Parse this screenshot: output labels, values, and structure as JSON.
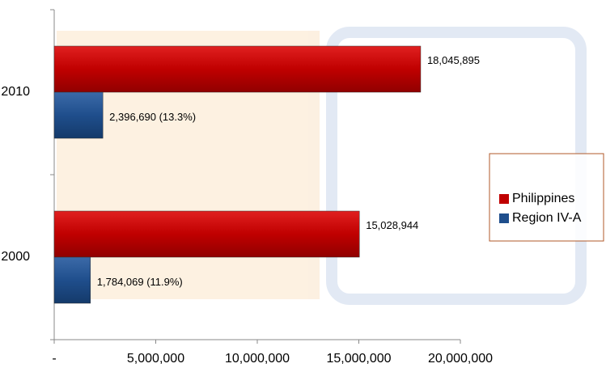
{
  "chart_data": {
    "type": "hbar",
    "categories": [
      "2010",
      "2000"
    ],
    "series": [
      {
        "name": "Philippines",
        "color": "#c00000",
        "values": [
          18045895,
          15028944
        ],
        "value_labels": [
          "18,045,895",
          "15,028,944"
        ]
      },
      {
        "name": "Region IV-A",
        "color": "#1f4e8c",
        "values": [
          2396690,
          1784069
        ],
        "value_labels": [
          "2,396,690 (13.3%)",
          "1,784,069 (11.9%)"
        ]
      }
    ],
    "xlim": [
      0,
      20000000
    ],
    "xticks": [
      {
        "value": 0,
        "label": "-"
      },
      {
        "value": 5000000,
        "label": "5,000,000"
      },
      {
        "value": 10000000,
        "label": "10,000,000"
      },
      {
        "value": 15000000,
        "label": "15,000,000"
      },
      {
        "value": 20000000,
        "label": "20,000,000"
      }
    ],
    "legend": "right"
  }
}
